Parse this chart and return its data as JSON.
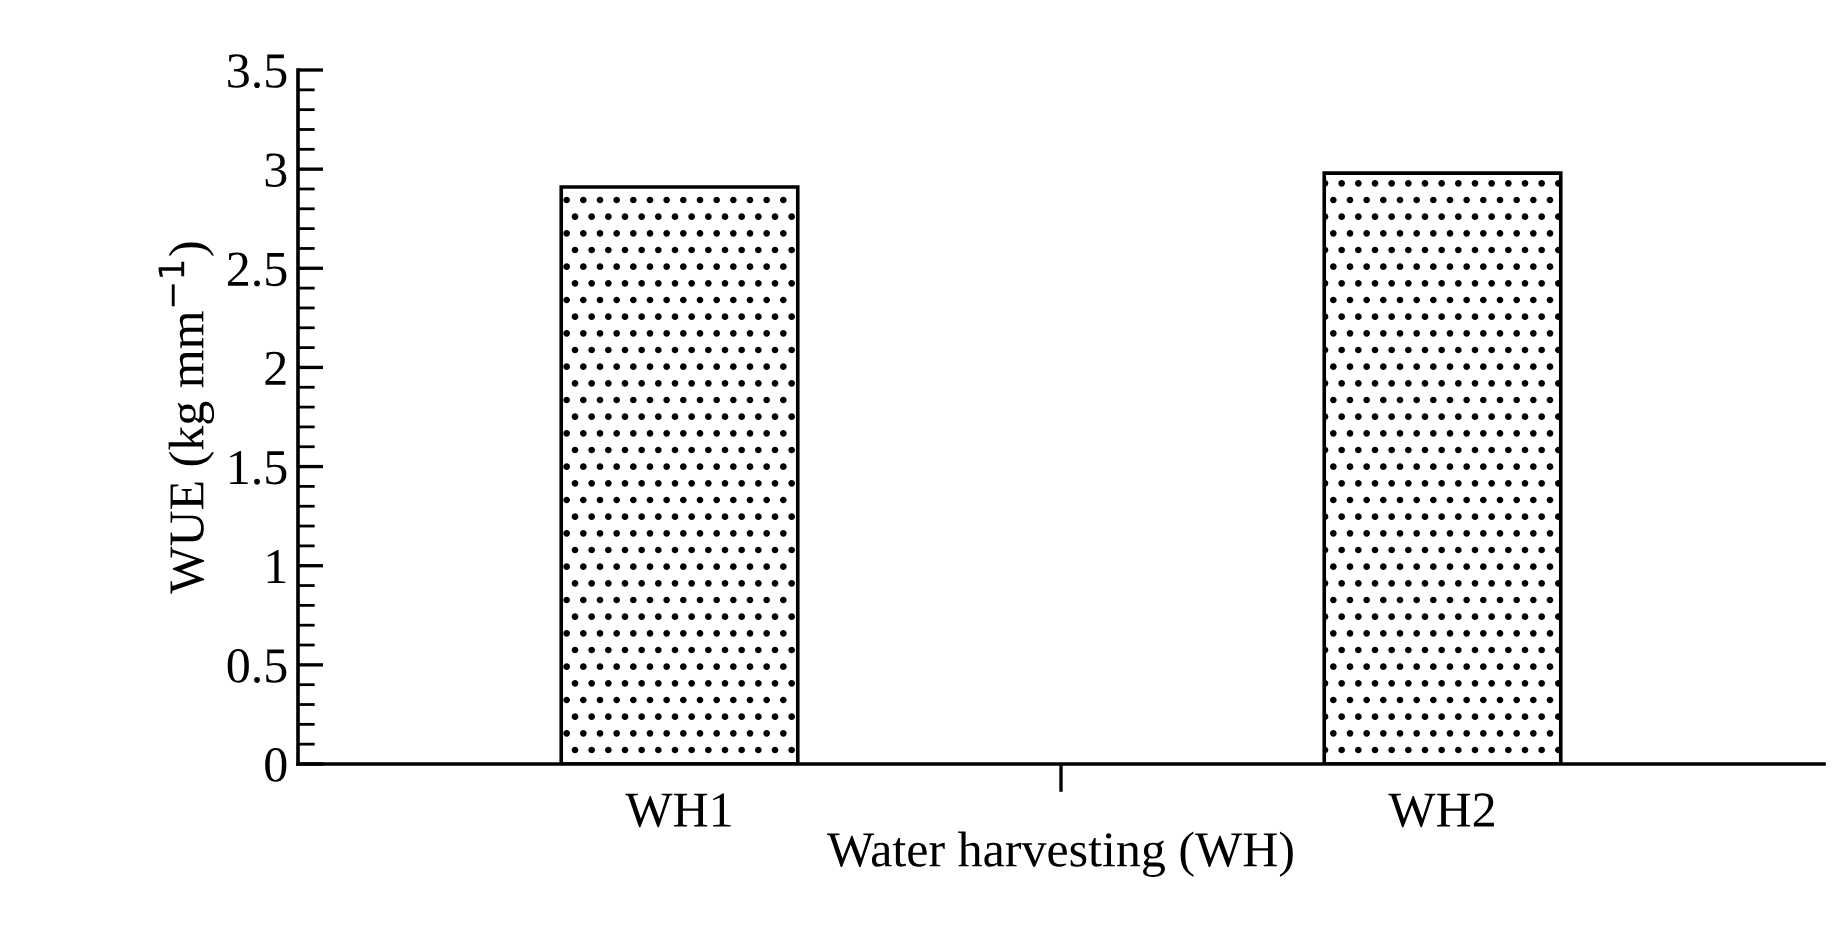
{
  "chart_data": {
    "type": "bar",
    "xlabel": "Water harvesting (WH)",
    "ylabel": "WUE (kg mm$^{−1}$)",
    "categories": [
      "WH1",
      "WH2"
    ],
    "values": [
      2.91,
      2.98
    ],
    "color": "#000000",
    "ylim": [
      0,
      3.5
    ],
    "yticks": [
      0,
      {
        "value": 0.5,
        "label": "0.5"
      },
      1,
      {
        "value": 1.5,
        "label": "1.5"
      },
      2,
      {
        "value": 2.5,
        "label": "2.5"
      },
      3,
      {
        "value": 3.5,
        "label": "3.5"
      }
    ],
    "grid": false
  }
}
